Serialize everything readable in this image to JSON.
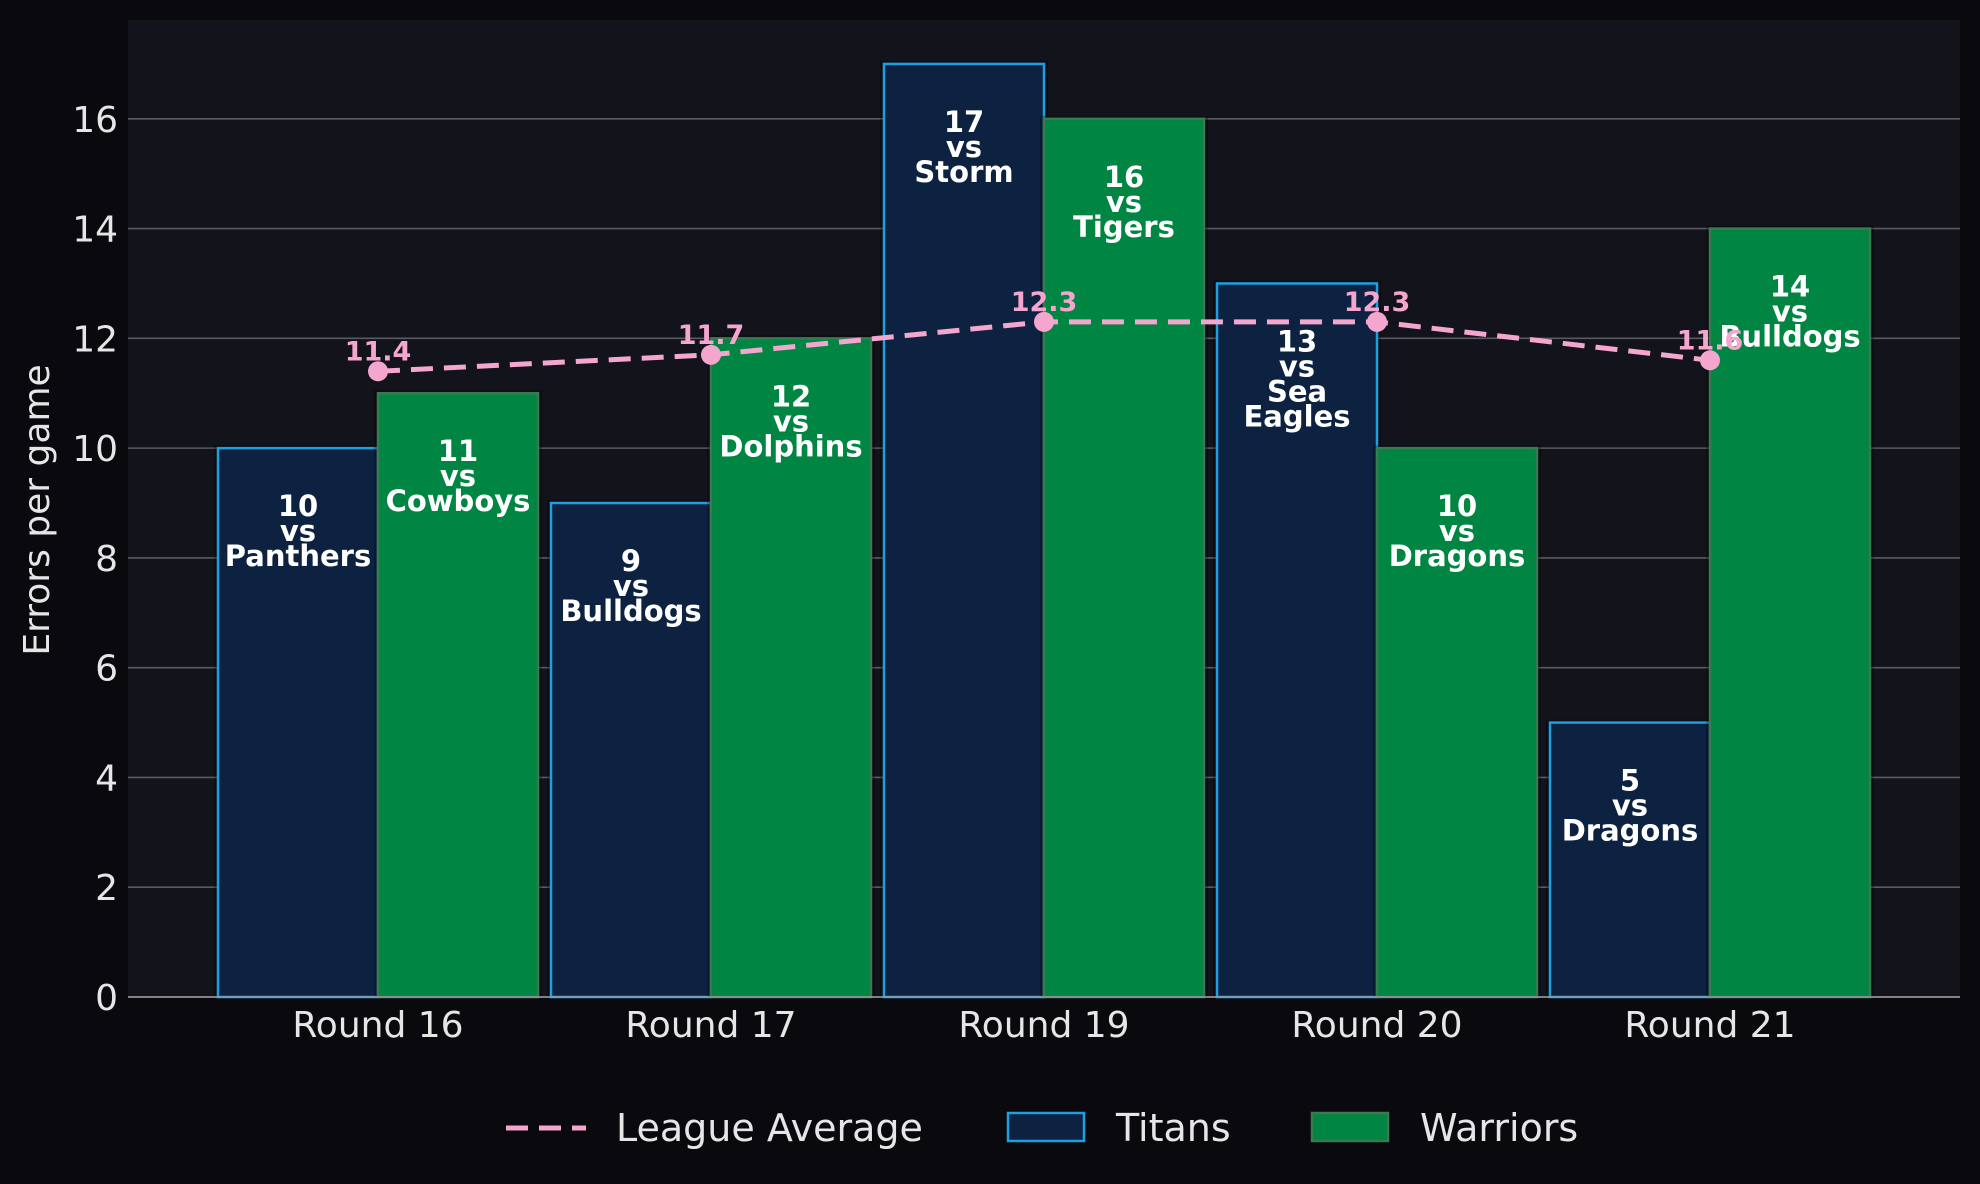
{
  "chart_data": {
    "type": "bar",
    "categories": [
      "Round 16",
      "Round 17",
      "Round 19",
      "Round 20",
      "Round 21"
    ],
    "ylabel": "Errors per game",
    "ylim": [
      0,
      17.8
    ],
    "yticks": [
      0,
      2,
      4,
      6,
      8,
      10,
      12,
      14,
      16
    ],
    "grid": true,
    "legend_position": "bottom",
    "series": [
      {
        "name": "Titans",
        "type": "bar",
        "values": [
          10,
          9,
          17,
          13,
          5
        ],
        "labels": [
          [
            "10",
            "vs",
            "Panthers"
          ],
          [
            "9",
            "vs",
            "Bulldogs"
          ],
          [
            "17",
            "vs",
            "Storm"
          ],
          [
            "13",
            "vs",
            "Sea",
            "Eagles"
          ],
          [
            "5",
            "vs",
            "Dragons"
          ]
        ],
        "fill": "#0c2240",
        "edge": "#1ea0e0"
      },
      {
        "name": "Warriors",
        "type": "bar",
        "values": [
          11,
          12,
          16,
          10,
          14
        ],
        "labels": [
          [
            "11",
            "vs",
            "Cowboys"
          ],
          [
            "12",
            "vs",
            "Dolphins"
          ],
          [
            "16",
            "vs",
            "Tigers"
          ],
          [
            "10",
            "vs",
            "Dragons"
          ],
          [
            "14",
            "vs",
            "Bulldogs"
          ]
        ],
        "fill": "#008542",
        "edge": "#3a7a52"
      },
      {
        "name": "League Average",
        "type": "line",
        "values": [
          11.4,
          11.7,
          12.3,
          12.3,
          11.6
        ],
        "labels": [
          "11.4",
          "11.7",
          "12.3",
          "12.3",
          "11.6"
        ],
        "color": "#f4a6cf"
      }
    ]
  }
}
